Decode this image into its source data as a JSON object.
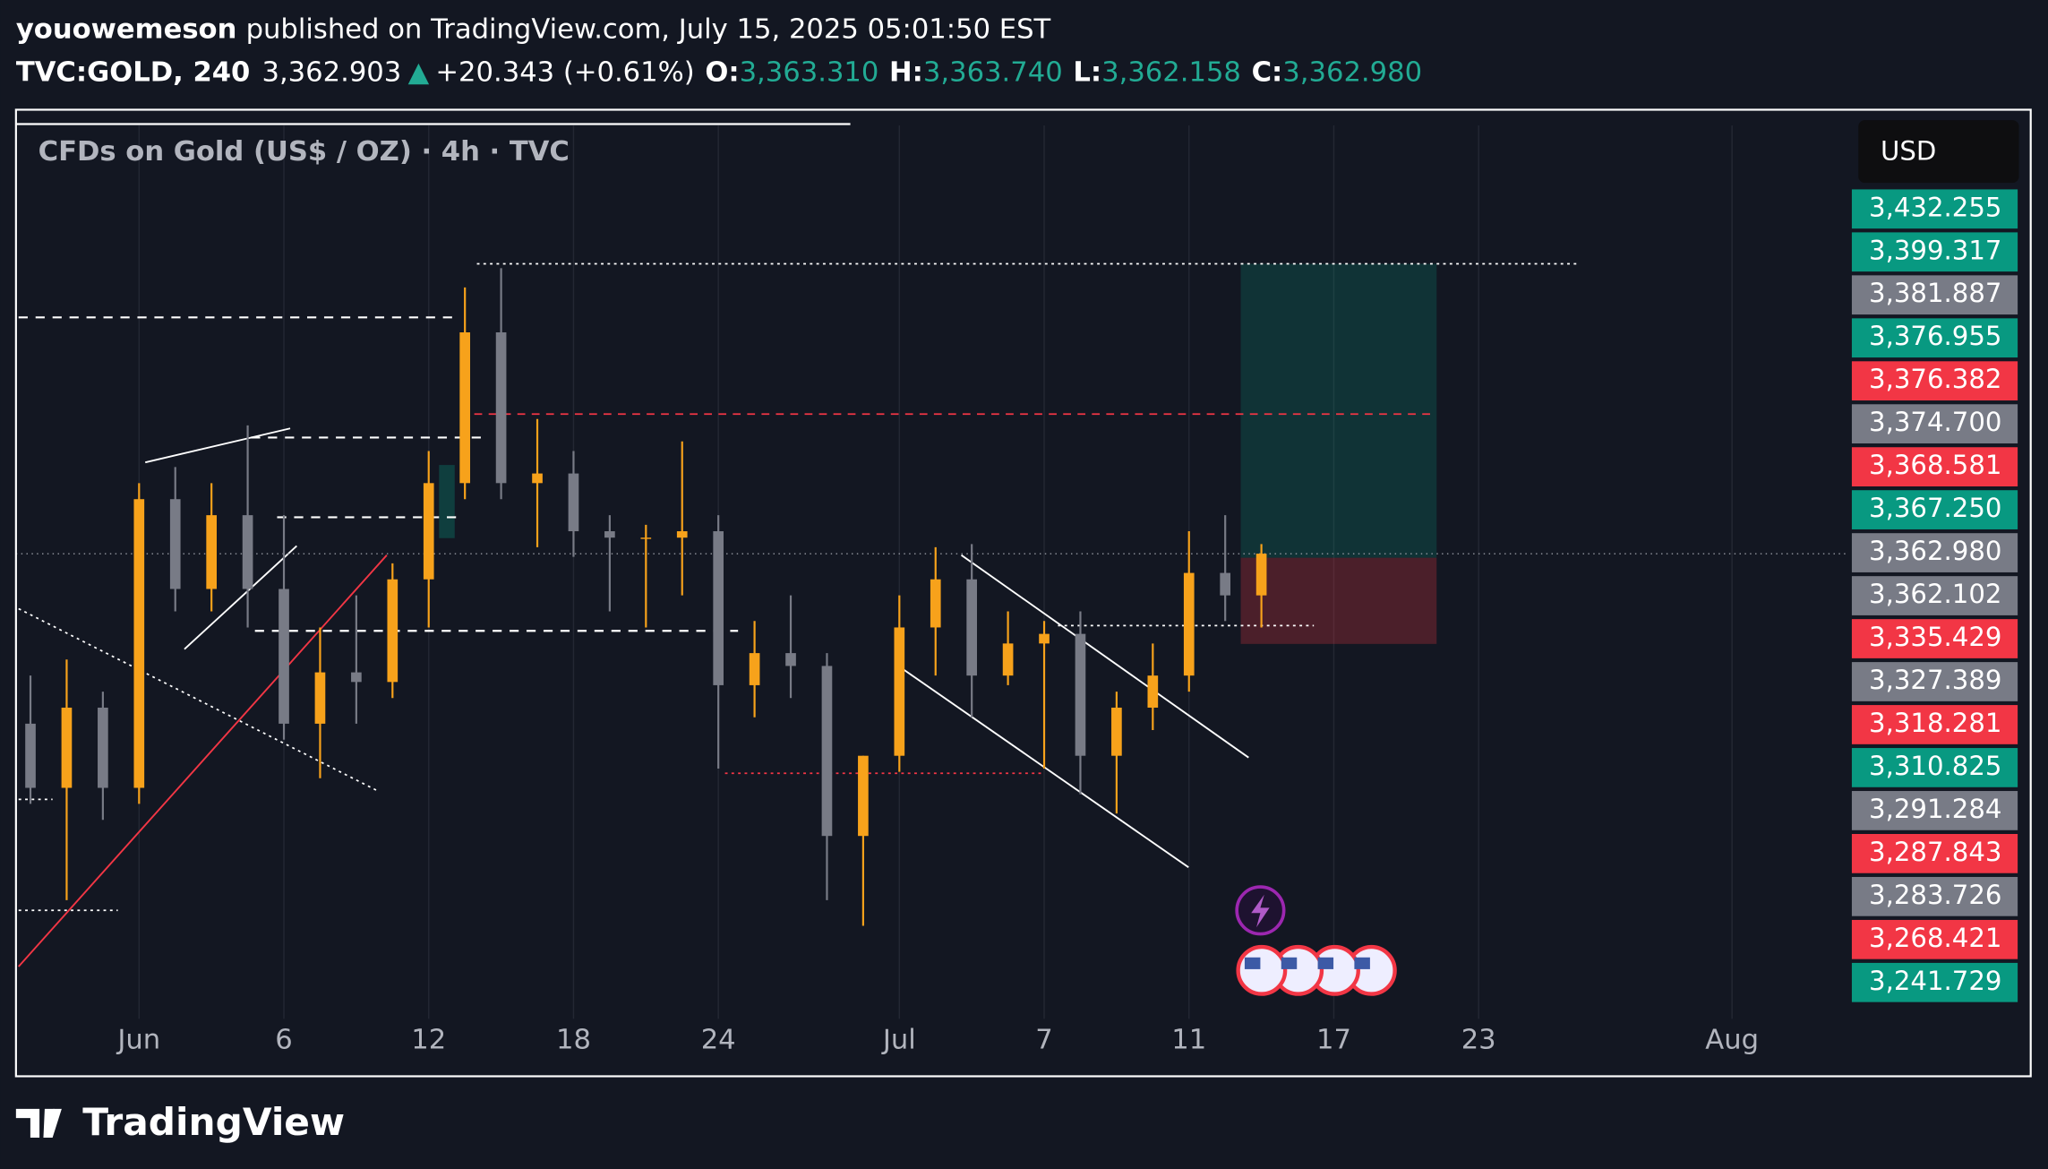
{
  "chart_data": {
    "type": "candlestick",
    "header": {
      "author": "youowemeson",
      "published": "published on TradingView.com, July 15, 2025 05:01:50 EST",
      "symbol": "TVC:GOLD, 240",
      "last": "3,362.903",
      "arrow": "▲",
      "change": "+20.343 (+0.61%)",
      "o_label": "O:",
      "o_value": "3,363.310",
      "h_label": "H:",
      "h_value": "3,363.740",
      "l_label": "L:",
      "l_value": "3,362.158",
      "c_label": "C:",
      "c_value": "3,362.980"
    },
    "title": "CFDs on Gold (US$ / OZ) · 4h · TVC",
    "currency": "USD",
    "brand": "TradingView",
    "up_color": "#f7a21b",
    "down_color": "#787b86",
    "x": [
      -3,
      -2,
      -1,
      0,
      1,
      2,
      3,
      4,
      5,
      6,
      7,
      8,
      9,
      10,
      11,
      12,
      13,
      14,
      15,
      16,
      17,
      18,
      19,
      20,
      21,
      22,
      23,
      24,
      25,
      26,
      27,
      28,
      29,
      30,
      31
    ],
    "open": [
      3310,
      3290,
      3315,
      3290,
      3380,
      3352,
      3375,
      3352,
      3310,
      3326,
      3323,
      3355,
      3385,
      3432,
      3385,
      3388,
      3370,
      3368,
      3368,
      3370,
      3322,
      3332,
      3328,
      3275,
      3300,
      3340,
      3355,
      3325,
      3335,
      3338,
      3300,
      3315,
      3325,
      3357,
      3350
    ],
    "high": [
      3325,
      3330,
      3320,
      3385,
      3390,
      3385,
      3403,
      3375,
      3340,
      3350,
      3360,
      3395,
      3446,
      3452,
      3405,
      3395,
      3375,
      3372,
      3398,
      3375,
      3342,
      3350,
      3332,
      3300,
      3350,
      3365,
      3366,
      3345,
      3342,
      3345,
      3320,
      3335,
      3370,
      3375,
      3366
    ],
    "low": [
      3285,
      3255,
      3280,
      3285,
      3345,
      3345,
      3340,
      3305,
      3293,
      3310,
      3318,
      3340,
      3380,
      3380,
      3365,
      3362,
      3345,
      3340,
      3350,
      3296,
      3312,
      3318,
      3255,
      3247,
      3295,
      3325,
      3312,
      3322,
      3296,
      3288,
      3282,
      3308,
      3320,
      3342,
      3340
    ],
    "close": [
      3290,
      3315,
      3290,
      3380,
      3352,
      3375,
      3352,
      3310,
      3326,
      3323,
      3355,
      3385,
      3432,
      3385,
      3388,
      3370,
      3368,
      3368,
      3370,
      3322,
      3332,
      3328,
      3275,
      3300,
      3340,
      3355,
      3325,
      3335,
      3338,
      3300,
      3315,
      3325,
      3357,
      3350,
      3363
    ],
    "xlim": [
      -3.4,
      47.2
    ],
    "xticks": [
      {
        "value": 0,
        "label": "Jun"
      },
      {
        "value": 4,
        "label": "6"
      },
      {
        "value": 8,
        "label": "12"
      },
      {
        "value": 12,
        "label": "18"
      },
      {
        "value": 16,
        "label": "24"
      },
      {
        "value": 21,
        "label": "Jul"
      },
      {
        "value": 25,
        "label": "7"
      },
      {
        "value": 29,
        "label": "11"
      },
      {
        "value": 33,
        "label": "17"
      },
      {
        "value": 37,
        "label": "23"
      },
      {
        "value": 44,
        "label": "Aug"
      }
    ],
    "ylim": [
      3218,
      3501
    ],
    "price_labels": [
      {
        "value": 3432.255,
        "label": "3,432.255",
        "color": "#089981"
      },
      {
        "value": 3399.317,
        "label": "3,399.317",
        "color": "#089981"
      },
      {
        "value": 3381.887,
        "label": "3,381.887",
        "color": "#787b86"
      },
      {
        "value": 3376.955,
        "label": "3,376.955",
        "color": "#089981"
      },
      {
        "value": 3376.382,
        "label": "3,376.382",
        "color": "#f23645"
      },
      {
        "value": 3374.7,
        "label": "3,374.700",
        "color": "#787b86"
      },
      {
        "value": 3368.581,
        "label": "3,368.581",
        "color": "#f23645"
      },
      {
        "value": 3367.25,
        "label": "3,367.250",
        "color": "#089981"
      },
      {
        "value": 3362.98,
        "label": "3,362.980",
        "color": "#787b86"
      },
      {
        "value": 3362.102,
        "label": "3,362.102",
        "color": "#787b86"
      },
      {
        "value": 3335.429,
        "label": "3,335.429",
        "color": "#f23645"
      },
      {
        "value": 3327.389,
        "label": "3,327.389",
        "color": "#787b86"
      },
      {
        "value": 3318.281,
        "label": "3,318.281",
        "color": "#f23645"
      },
      {
        "value": 3310.825,
        "label": "3,310.825",
        "color": "#089981"
      },
      {
        "value": 3291.284,
        "label": "3,291.284",
        "color": "#787b86"
      },
      {
        "value": 3287.843,
        "label": "3,287.843",
        "color": "#f23645"
      },
      {
        "value": 3283.726,
        "label": "3,283.726",
        "color": "#787b86"
      },
      {
        "value": 3268.421,
        "label": "3,268.421",
        "color": "#f23645"
      },
      {
        "value": 3241.729,
        "label": "3,241.729",
        "color": "#089981"
      }
    ],
    "grid": true
  }
}
